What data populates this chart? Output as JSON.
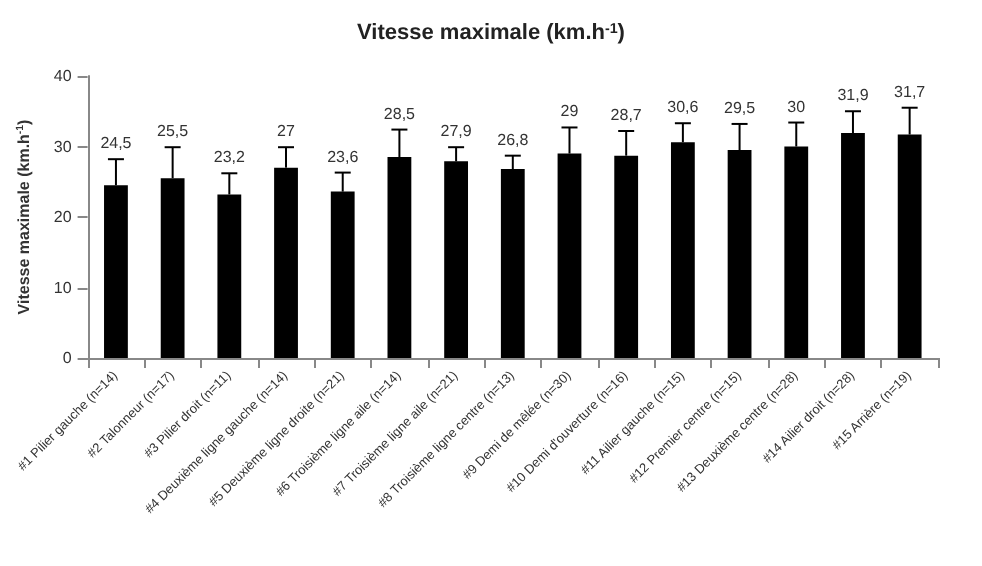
{
  "chart_data": {
    "type": "bar",
    "title": "Vitesse maximale (km.h$^{-1}$)",
    "ylabel": "Vitesse maximale (km.h$^{-1}$)",
    "categories": [
      "#1 Pilier gauche (n=14)",
      "#2 Talonneur (n=17)",
      "#3 Pilier droit (n=11)",
      "#4 Deuxième ligne gauche (n=14)",
      "#5 Deuxième ligne droite (n=21)",
      "#6 Troisième ligne aile (n=14)",
      "#7 Troisième ligne aile (n=21)",
      "#8 Troisième ligne centre (n=13)",
      "#9 Demi de mêlée (n=30)",
      "#10 Demi d'ouverture (n=16)",
      "#11 Ailier gauche (n=15)",
      "#12 Premier centre (n=15)",
      "#13 Deuxième centre (n=28)",
      "#14 Ailier droit (n=28)",
      "#15 Arrière (n=19)"
    ],
    "values": [
      24.5,
      25.5,
      23.2,
      27,
      23.6,
      28.5,
      27.9,
      26.8,
      29,
      28.7,
      30.6,
      29.5,
      30,
      31.9,
      31.7
    ],
    "value_labels": [
      "24,5",
      "25,5",
      "23,2",
      "27",
      "23,6",
      "28,5",
      "27,9",
      "26,8",
      "29",
      "28,7",
      "30,6",
      "29,5",
      "30",
      "31,9",
      "31,7"
    ],
    "errors": [
      [
        24.5,
        28.2
      ],
      [
        25.5,
        29.9
      ],
      [
        23.2,
        26.2
      ],
      [
        27,
        29.9
      ],
      [
        23.6,
        26.3
      ],
      [
        28.5,
        32.4
      ],
      [
        27.9,
        29.9
      ],
      [
        26.8,
        28.7
      ],
      [
        29,
        32.7
      ],
      [
        28.7,
        32.2
      ],
      [
        30.6,
        33.3
      ],
      [
        29.5,
        33.2
      ],
      [
        30,
        33.4
      ],
      [
        31.9,
        35.0
      ],
      [
        31.7,
        35.5
      ]
    ],
    "color": "#000000",
    "ylim": [
      0,
      40
    ],
    "yticks": [
      0,
      10,
      20,
      30,
      40
    ],
    "grid": false
  }
}
